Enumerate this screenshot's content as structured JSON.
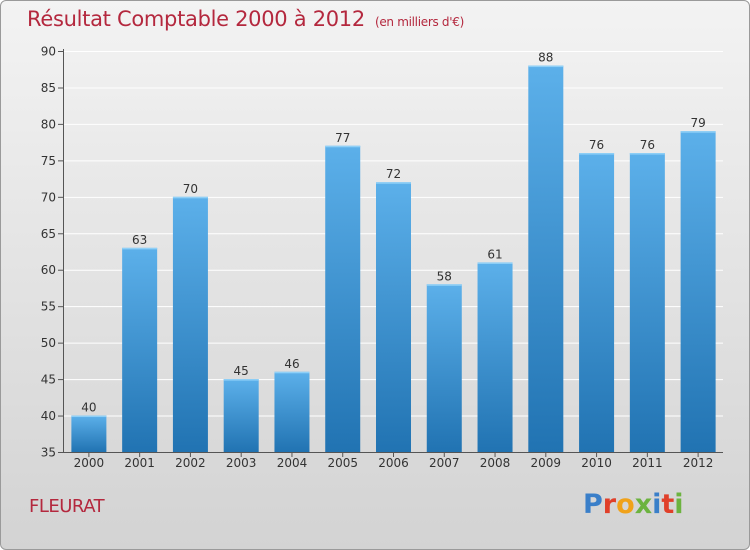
{
  "header": {
    "title": "Résultat Comptable 2000 à 2012",
    "unit": "(en milliers d'€)"
  },
  "footer": {
    "commune": "FLEURAT",
    "brand": "Proxiti"
  },
  "colors": {
    "title": "#b4283e",
    "bar_top": "#5cb0ea",
    "bar_bottom": "#2173b2",
    "brand_letters": [
      "#3a7fc9",
      "#e0402a",
      "#f0a21a",
      "#6cb33f",
      "#3a7fc9",
      "#e0402a",
      "#6cb33f"
    ]
  },
  "chart_data": {
    "type": "bar",
    "title": "Résultat Comptable 2000 à 2012",
    "subtitle": "(en milliers d'€)",
    "xlabel": "",
    "ylabel": "",
    "categories": [
      "2000",
      "2001",
      "2002",
      "2003",
      "2004",
      "2005",
      "2006",
      "2007",
      "2008",
      "2009",
      "2010",
      "2011",
      "2012"
    ],
    "values": [
      40,
      63,
      70,
      45,
      46,
      77,
      72,
      58,
      61,
      88,
      76,
      76,
      79
    ],
    "ylim": [
      35,
      90
    ],
    "yticks": [
      35,
      40,
      45,
      50,
      55,
      60,
      65,
      70,
      75,
      80,
      85,
      90
    ],
    "grid": true
  }
}
